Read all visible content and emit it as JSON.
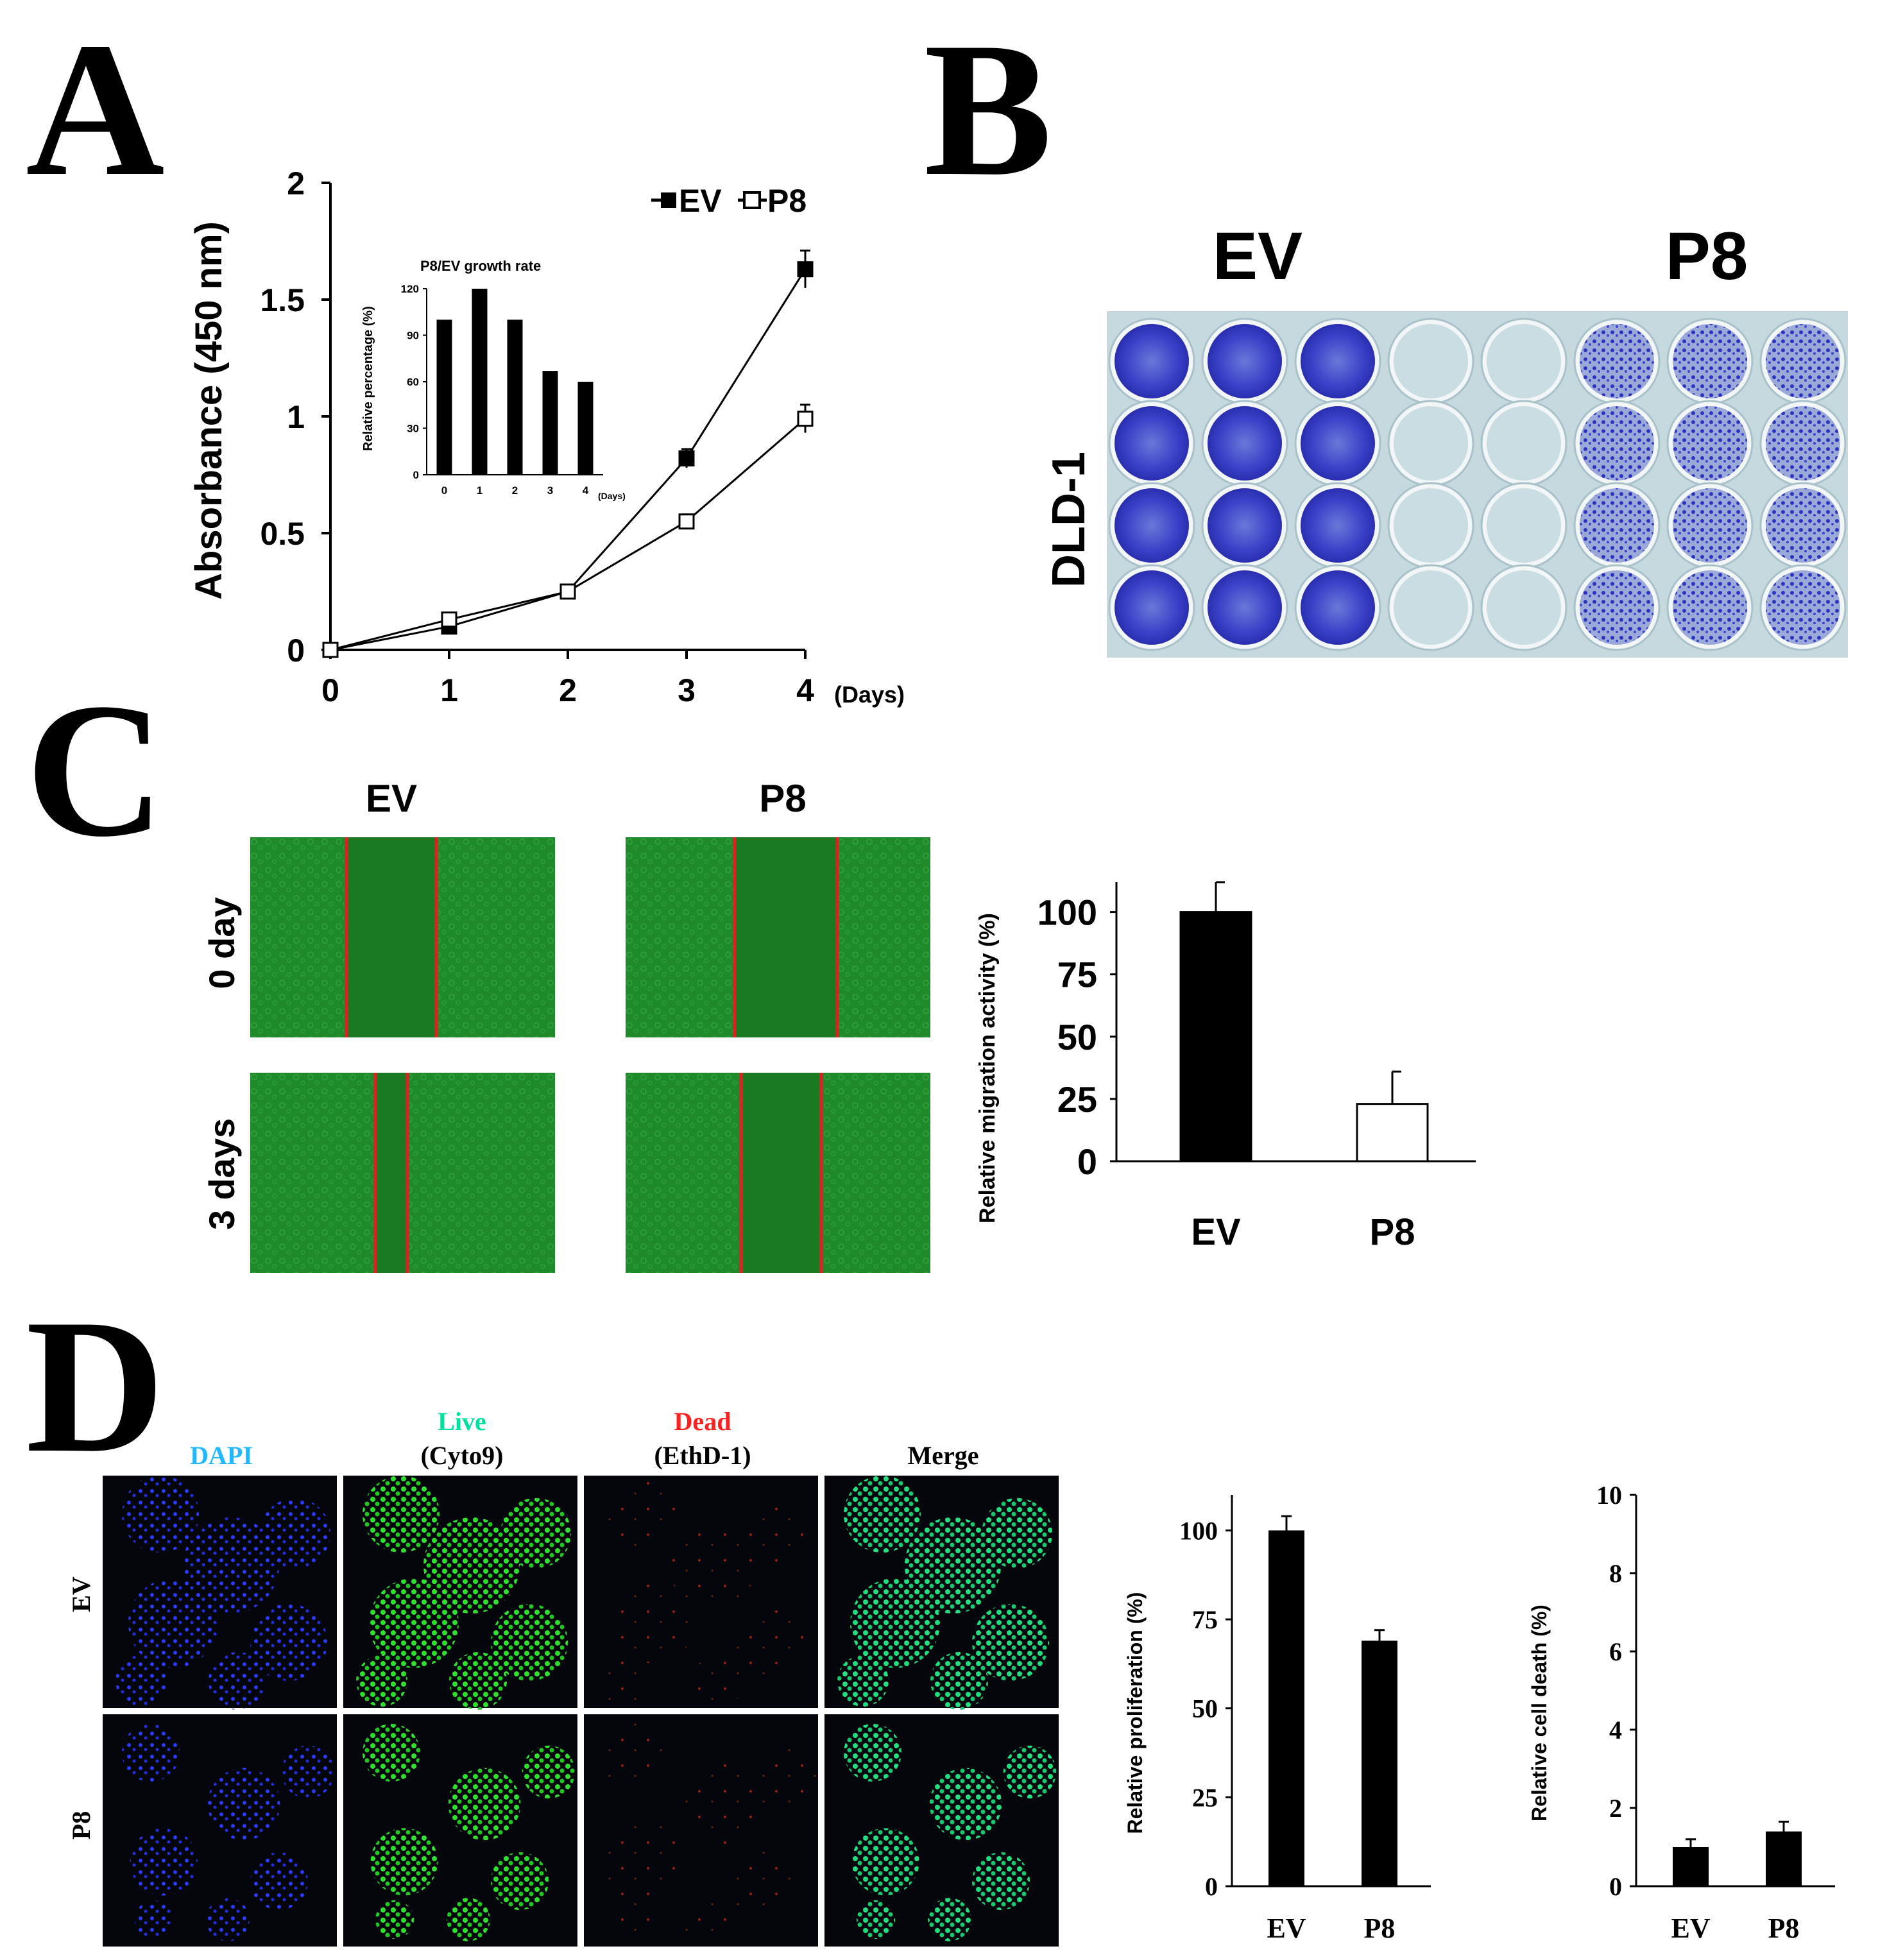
{
  "panels": {
    "A": "A",
    "B": "B",
    "C": "C",
    "D": "D"
  },
  "panelA": {
    "ylabel": "Absorbance (450 nm)",
    "xunit": "(Days)",
    "legend": [
      "EV",
      "P8"
    ],
    "chart_data": {
      "type": "line",
      "x": [
        0,
        1,
        2,
        3,
        4
      ],
      "xticks": [
        "0",
        "1",
        "2",
        "3",
        "4"
      ],
      "yticks": [
        "0",
        "0.5",
        "1",
        "1.5",
        "2"
      ],
      "ylim": [
        0,
        2
      ],
      "series": [
        {
          "name": "EV",
          "values": [
            0,
            0.1,
            0.25,
            0.82,
            1.63
          ],
          "errors": [
            0,
            0.02,
            0.02,
            0.04,
            0.08
          ],
          "marker": "filled-square"
        },
        {
          "name": "P8",
          "values": [
            0,
            0.13,
            0.25,
            0.55,
            0.99
          ],
          "errors": [
            0,
            0.02,
            0.02,
            0.03,
            0.06
          ],
          "marker": "open-square"
        }
      ]
    },
    "inset": {
      "title": "P8/EV growth rate",
      "ylabel": "Relative percentage (%)",
      "xunit": "(Days)",
      "chart_data": {
        "type": "bar",
        "categories": [
          "0",
          "1",
          "2",
          "3",
          "4"
        ],
        "values": [
          100,
          120,
          100,
          67,
          60
        ],
        "yticks": [
          "0",
          "30",
          "60",
          "90",
          "120"
        ],
        "ylim": [
          0,
          120
        ]
      }
    }
  },
  "panelB": {
    "headers": [
      "EV",
      "P8"
    ],
    "rowlabel": "DLD-1",
    "plate": {
      "rows": 4,
      "cols": 8,
      "stained_color": "#3a40c8",
      "plate_color": "#cfe0e6"
    }
  },
  "panelC": {
    "col_headers": [
      "EV",
      "P8"
    ],
    "row_labels": [
      "0 day",
      "3 days"
    ],
    "ylabel": "Relative migration activity (%)",
    "chart_data": {
      "type": "bar",
      "categories": [
        "EV",
        "P8"
      ],
      "values": [
        100,
        23
      ],
      "errors": [
        12,
        13
      ],
      "fills": [
        "#000000",
        "#ffffff"
      ],
      "yticks": [
        "0",
        "25",
        "50",
        "75",
        "100"
      ],
      "ylim": [
        0,
        112
      ]
    }
  },
  "panelD": {
    "headers": {
      "dapi": "DAPI",
      "live": "Live",
      "cyto9": "(Cyto9)",
      "dead": "Dead",
      "ethd1": "(EthD-1)",
      "merge": "Merge"
    },
    "row_labels": [
      "EV",
      "P8"
    ],
    "colors": {
      "dapi": "#22b8ff",
      "live": "#00e0a0",
      "dead": "#ff2020"
    },
    "proliferation": {
      "ylabel": "Relative proliferation (%)",
      "chart_data": {
        "type": "bar",
        "categories": [
          "EV",
          "P8"
        ],
        "values": [
          100,
          69
        ],
        "errors": [
          4,
          3
        ],
        "yticks": [
          "0",
          "25",
          "50",
          "75",
          "100"
        ],
        "ylim": [
          0,
          110
        ]
      }
    },
    "death": {
      "ylabel": "Relative cell death (%)",
      "chart_data": {
        "type": "bar",
        "categories": [
          "EV",
          "P8"
        ],
        "values": [
          1.0,
          1.4
        ],
        "errors": [
          0.2,
          0.25
        ],
        "yticks": [
          "0",
          "2",
          "4",
          "6",
          "8",
          "10"
        ],
        "ylim": [
          0,
          10
        ]
      }
    }
  }
}
